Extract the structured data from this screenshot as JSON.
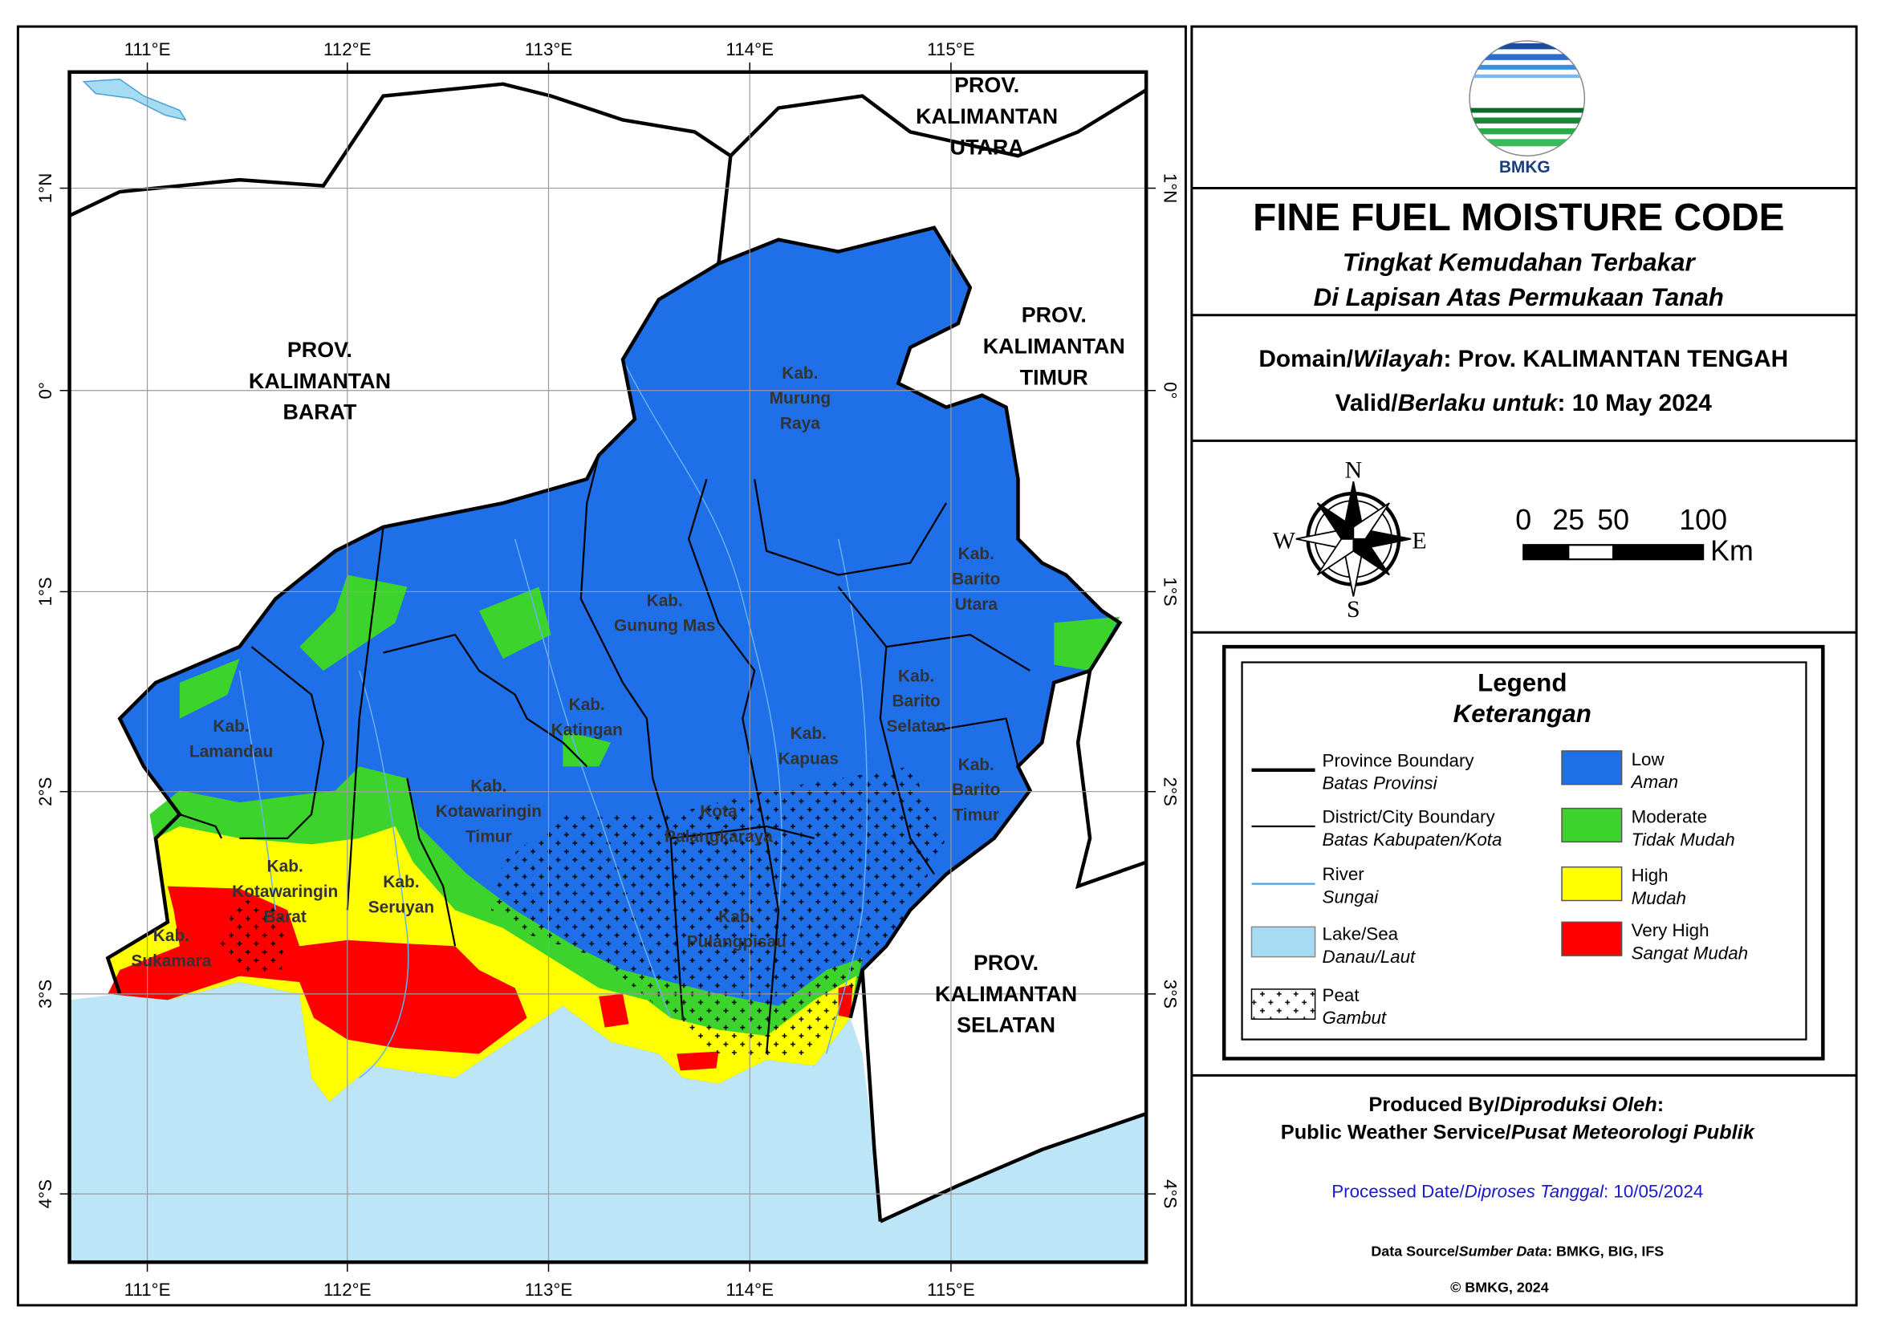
{
  "map": {
    "lon_labels": [
      "111°E",
      "112°E",
      "113°E",
      "114°E",
      "115°E"
    ],
    "lat_labels": [
      "1°N",
      "0°",
      "1°S",
      "2°S",
      "3°S",
      "4°S"
    ],
    "province_labels": [
      {
        "lines": [
          "PROV.",
          "KALIMANTAN",
          "BARAT"
        ]
      },
      {
        "lines": [
          "PROV.",
          "KALIMANTAN",
          "UTARA"
        ]
      },
      {
        "lines": [
          "PROV.",
          "KALIMANTAN",
          "TIMUR"
        ]
      },
      {
        "lines": [
          "PROV.",
          "KALIMANTAN",
          "SELATAN"
        ]
      }
    ],
    "district_labels": [
      {
        "lines": [
          "Kab.",
          "Murung",
          "Raya"
        ]
      },
      {
        "lines": [
          "Kab.",
          "Gunung Mas"
        ]
      },
      {
        "lines": [
          "Kab.",
          "Barito",
          "Utara"
        ]
      },
      {
        "lines": [
          "Kab.",
          "Katingan"
        ]
      },
      {
        "lines": [
          "Kab.",
          "Barito",
          "Selatan"
        ]
      },
      {
        "lines": [
          "Kab.",
          "Kapuas"
        ]
      },
      {
        "lines": [
          "Kab.",
          "Barito",
          "Timur"
        ]
      },
      {
        "lines": [
          "Kab.",
          "Lamandau"
        ]
      },
      {
        "lines": [
          "Kab.",
          "Kotawaringin",
          "Timur"
        ]
      },
      {
        "lines": [
          "Kota",
          "Palangkaraya"
        ]
      },
      {
        "lines": [
          "Kab.",
          "Kotawaringin",
          "Barat"
        ]
      },
      {
        "lines": [
          "Kab.",
          "Seruyan"
        ]
      },
      {
        "lines": [
          "Kab.",
          "Pulangpisau"
        ]
      },
      {
        "lines": [
          "Kab.",
          "Sukamara"
        ]
      }
    ]
  },
  "header": {
    "logo_text": "BMKG",
    "title": "FINE FUEL MOISTURE CODE",
    "subtitle_lines": [
      "Tingkat Kemudahan Terbakar",
      "Di Lapisan Atas Permukaan Tanah"
    ]
  },
  "info": {
    "domain": [
      "Domain/",
      "Wilayah",
      ": Prov. KALIMANTAN TENGAH"
    ],
    "valid": [
      "Valid/",
      "Berlaku untuk",
      ": 10 May 2024"
    ]
  },
  "compass": {
    "n": "N",
    "e": "E",
    "s": "S",
    "w": "W"
  },
  "scale_bar": {
    "ticks": [
      0,
      25,
      50,
      100
    ],
    "unit": "Km"
  },
  "legend": {
    "title": "Legend",
    "subtitle": "Keterangan",
    "items": [
      {
        "label": "Province Boundary",
        "label_alt": "Batas Provinsi"
      },
      {
        "label": "District/City Boundary",
        "label_alt": "Batas Kabupaten/Kota"
      },
      {
        "label": "River",
        "label_alt": "Sungai"
      },
      {
        "label": "Lake/Sea",
        "label_alt": "Danau/Laut"
      },
      {
        "label": "Peat",
        "label_alt": "Gambut"
      },
      {
        "label": "Low",
        "label_alt": "Aman",
        "color": "#1f6fe8"
      },
      {
        "label": "Moderate",
        "label_alt": "Tidak Mudah",
        "color": "#3cd42c"
      },
      {
        "label": "High",
        "label_alt": "Mudah",
        "color": "#ffff00"
      },
      {
        "label": "Very High",
        "label_alt": "Sangat Mudah",
        "color": "#ff0000"
      }
    ]
  },
  "footer": {
    "produced_by": [
      "Produced By/",
      "Diproduksi Oleh",
      ":"
    ],
    "producer": [
      "Public Weather Service/",
      "Pusat Meteorologi Publik"
    ],
    "processed": [
      "Processed Date/",
      "Diproses Tanggal",
      ": 10/05/2024"
    ],
    "data_source": [
      "Data Source/",
      "Sumber Data",
      ": BMKG, BIG, IFS"
    ],
    "copyright": "© BMKG, 2024"
  }
}
